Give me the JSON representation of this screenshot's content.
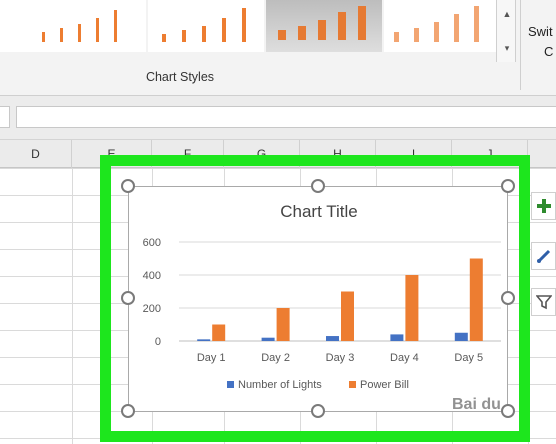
{
  "ribbon": {
    "group_label": "Chart Styles",
    "switch_label_line1": "Swit",
    "switch_label_line2": "C"
  },
  "grid": {
    "columns": [
      "D",
      "E",
      "F",
      "G",
      "H",
      "I",
      "J"
    ]
  },
  "chart_data": {
    "type": "bar",
    "title": "Chart Title",
    "categories": [
      "Day 1",
      "Day 2",
      "Day 3",
      "Day 4",
      "Day 5"
    ],
    "series": [
      {
        "name": "Number of Lights",
        "values": [
          10,
          20,
          30,
          40,
          50
        ],
        "color": "#4472c4"
      },
      {
        "name": "Power Bill",
        "values": [
          100,
          200,
          300,
          400,
          500
        ],
        "color": "#ed7d31"
      }
    ],
    "y_ticks": [
      "0",
      "200",
      "400",
      "600"
    ],
    "ylim": [
      0,
      600
    ],
    "grid": true,
    "legend": "bottom"
  },
  "side_buttons": {
    "add_icon": "plus-icon",
    "style_icon": "brush-icon",
    "filter_icon": "filter-icon"
  },
  "watermark": "Bai du"
}
